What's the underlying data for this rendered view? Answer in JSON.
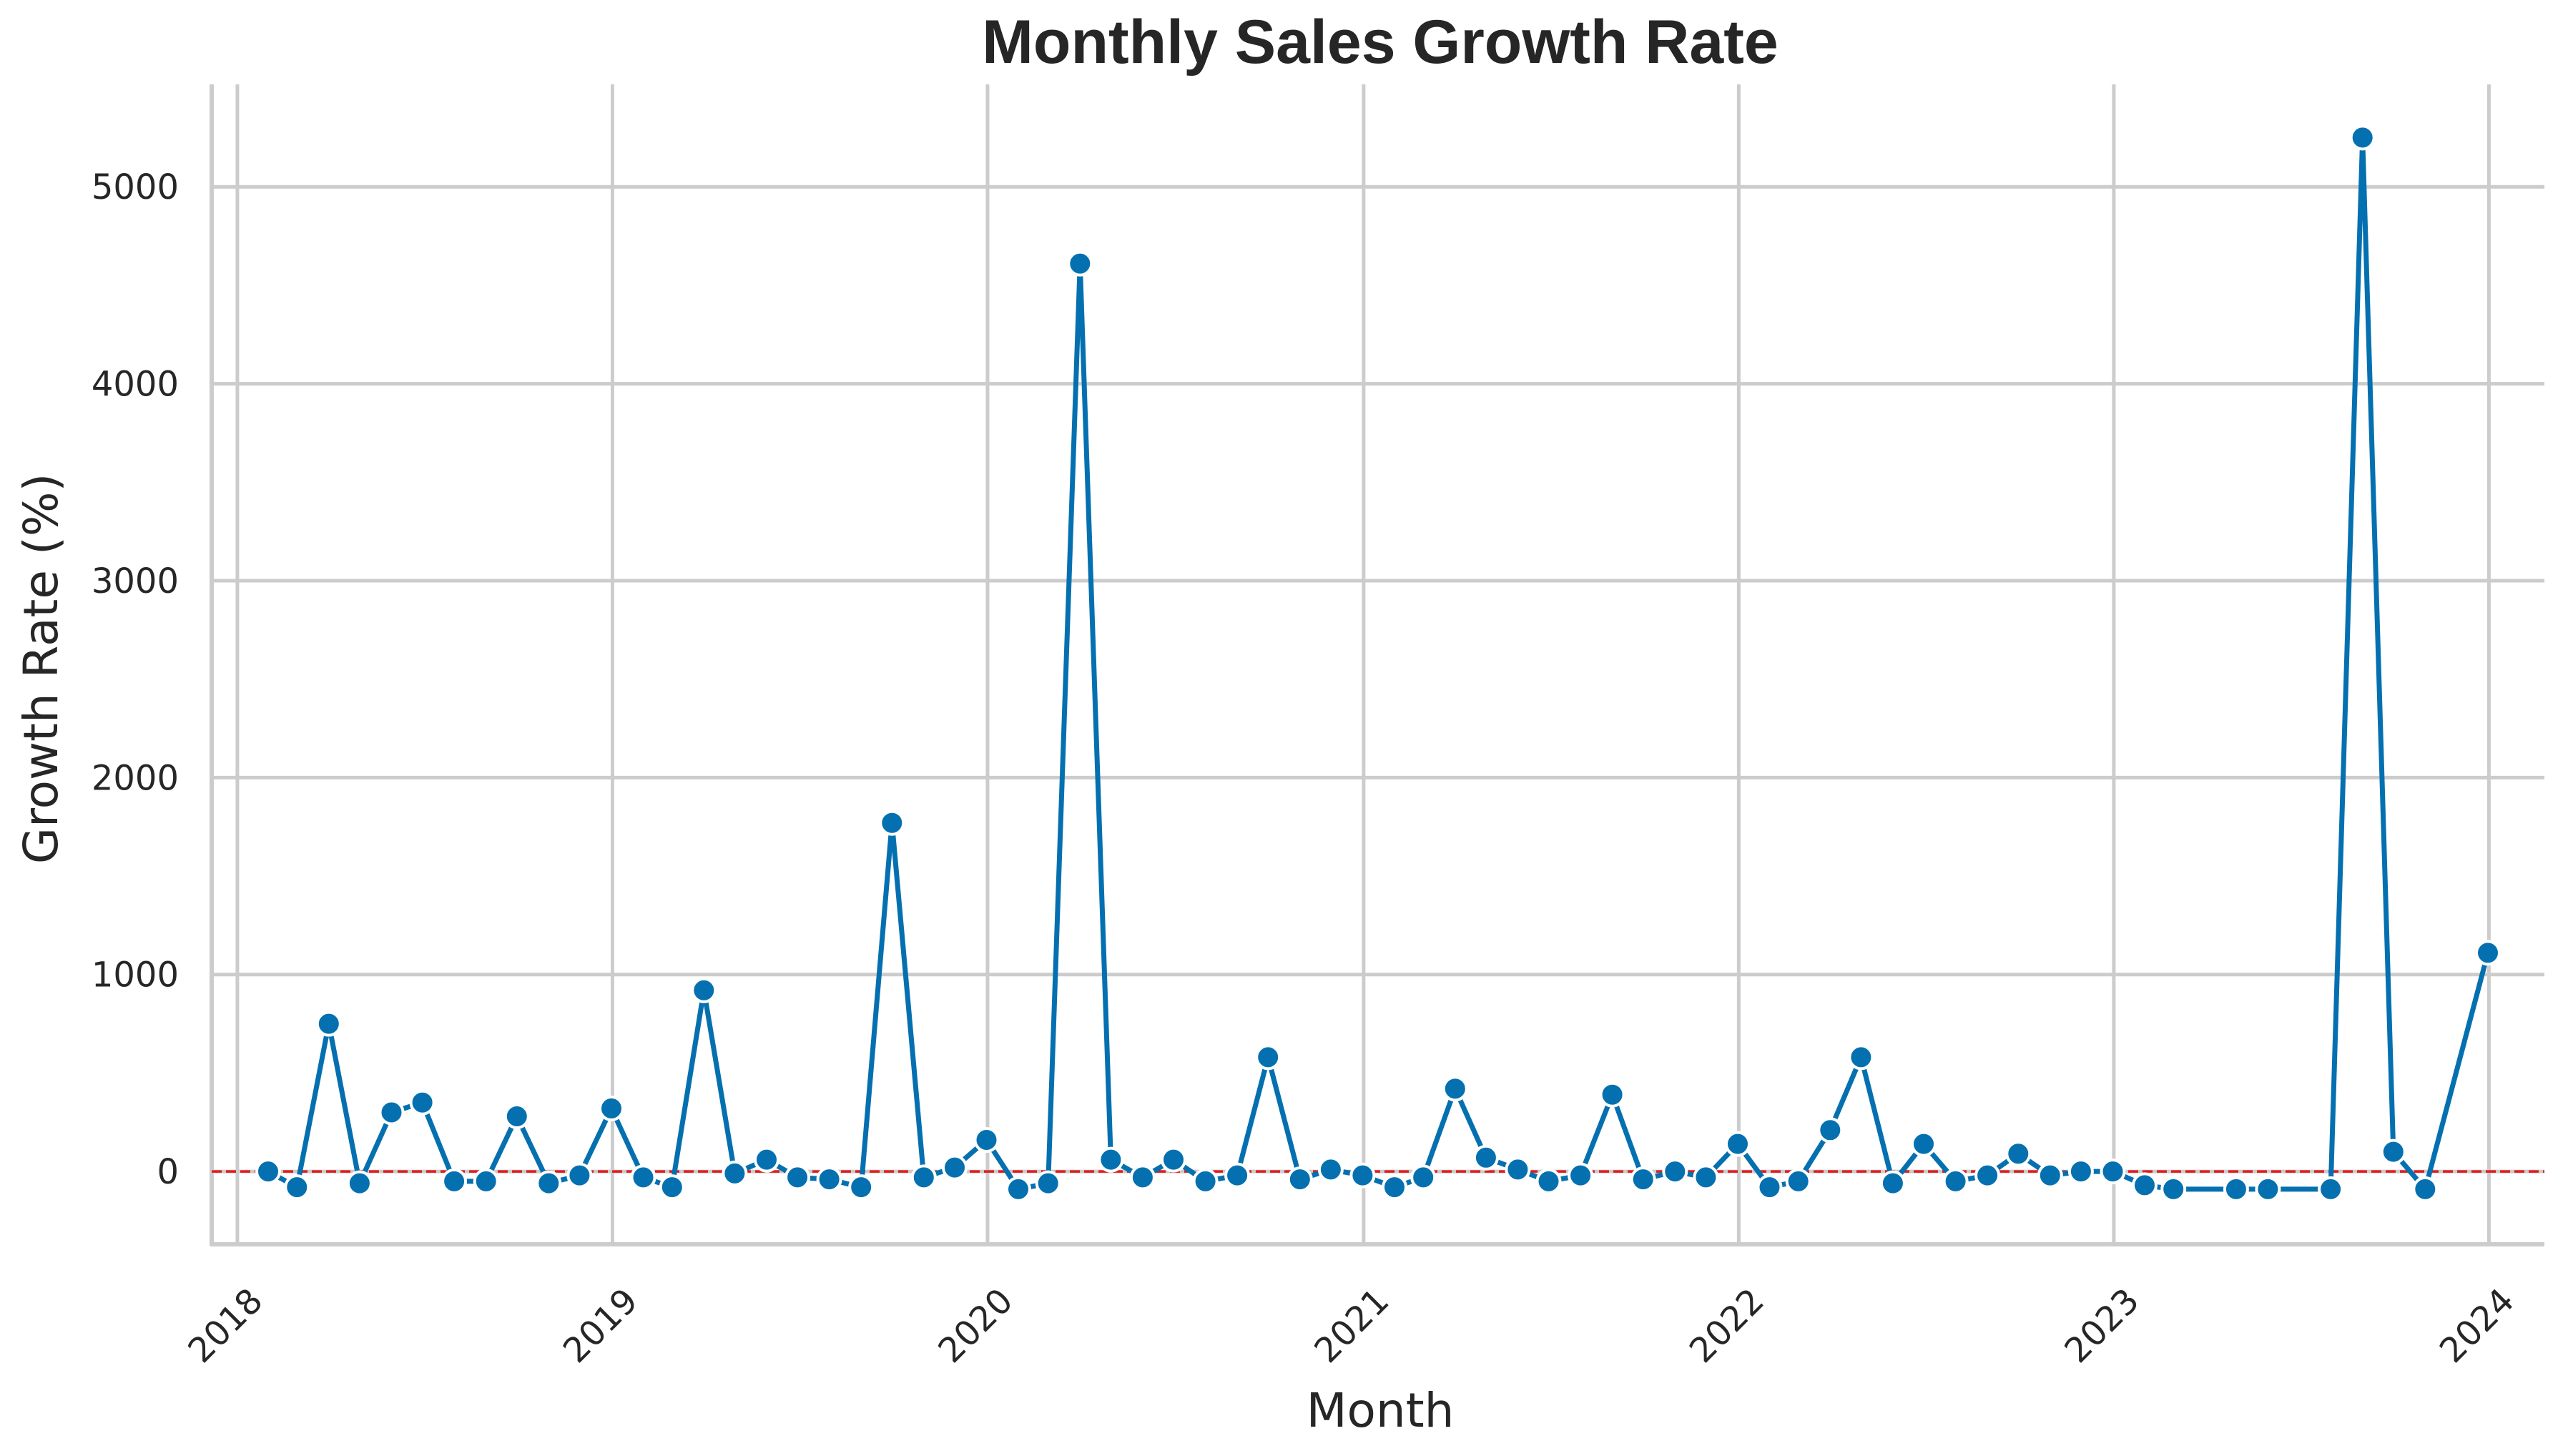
{
  "chart_data": {
    "type": "line",
    "title": "Monthly Sales Growth Rate",
    "xlabel": "Month",
    "ylabel": "Growth Rate (%)",
    "x_ticks": [
      "2018",
      "2019",
      "2020",
      "2021",
      "2022",
      "2023",
      "2024"
    ],
    "y_ticks": [
      0,
      1000,
      2000,
      3000,
      4000,
      5000
    ],
    "xlim": [
      "2017-12-07",
      "2024-02-24"
    ],
    "ylim": [
      -370,
      5520
    ],
    "grid": true,
    "reference_line": {
      "y": 0,
      "color": "#e41a1c",
      "style": "dashed"
    },
    "line_color": "#0570b0",
    "series": [
      {
        "points": [
          [
            "2018-01-31",
            0
          ],
          [
            "2018-02-28",
            -80
          ],
          [
            "2018-03-31",
            750
          ],
          [
            "2018-04-30",
            -60
          ],
          [
            "2018-05-31",
            300
          ],
          [
            "2018-06-30",
            350
          ],
          [
            "2018-07-31",
            -50
          ],
          [
            "2018-08-31",
            -50
          ],
          [
            "2018-09-30",
            280
          ],
          [
            "2018-10-31",
            -60
          ],
          [
            "2018-11-30",
            -20
          ],
          [
            "2018-12-31",
            320
          ],
          [
            "2019-01-31",
            -30
          ],
          [
            "2019-02-28",
            -80
          ],
          [
            "2019-03-31",
            920
          ],
          [
            "2019-04-30",
            -10
          ],
          [
            "2019-05-31",
            60
          ],
          [
            "2019-06-30",
            -30
          ],
          [
            "2019-07-31",
            -40
          ],
          [
            "2019-08-31",
            -80
          ],
          [
            "2019-09-30",
            1770
          ],
          [
            "2019-10-31",
            -30
          ],
          [
            "2019-11-30",
            20
          ],
          [
            "2019-12-31",
            160
          ],
          [
            "2020-01-31",
            -90
          ],
          [
            "2020-02-29",
            -60
          ],
          [
            "2020-03-31",
            4610
          ],
          [
            "2020-04-30",
            60
          ],
          [
            "2020-05-31",
            -30
          ],
          [
            "2020-06-30",
            60
          ],
          [
            "2020-07-31",
            -50
          ],
          [
            "2020-08-31",
            -20
          ],
          [
            "2020-09-30",
            580
          ],
          [
            "2020-10-31",
            -40
          ],
          [
            "2020-11-30",
            10
          ],
          [
            "2020-12-31",
            -20
          ],
          [
            "2021-01-31",
            -80
          ],
          [
            "2021-02-28",
            -30
          ],
          [
            "2021-03-31",
            420
          ],
          [
            "2021-04-30",
            70
          ],
          [
            "2021-05-31",
            10
          ],
          [
            "2021-06-30",
            -50
          ],
          [
            "2021-07-31",
            -20
          ],
          [
            "2021-08-31",
            390
          ],
          [
            "2021-09-30",
            -40
          ],
          [
            "2021-10-31",
            0
          ],
          [
            "2021-11-30",
            -30
          ],
          [
            "2021-12-31",
            140
          ],
          [
            "2022-01-31",
            -80
          ],
          [
            "2022-02-28",
            -50
          ],
          [
            "2022-03-31",
            210
          ],
          [
            "2022-04-30",
            580
          ],
          [
            "2022-05-31",
            -60
          ],
          [
            "2022-06-30",
            140
          ],
          [
            "2022-07-31",
            -50
          ],
          [
            "2022-08-31",
            -20
          ],
          [
            "2022-09-30",
            90
          ],
          [
            "2022-10-31",
            -20
          ],
          [
            "2022-11-30",
            0
          ],
          [
            "2022-12-31",
            0
          ],
          [
            "2023-01-31",
            -70
          ],
          [
            "2023-02-28",
            -90
          ],
          [
            "2023-04-30",
            -90
          ],
          [
            "2023-05-31",
            -90
          ],
          [
            "2023-07-31",
            -90
          ],
          [
            "2023-08-31",
            5250
          ],
          [
            "2023-09-30",
            100
          ],
          [
            "2023-10-31",
            -90
          ],
          [
            "2023-12-31",
            1110
          ]
        ]
      }
    ]
  }
}
